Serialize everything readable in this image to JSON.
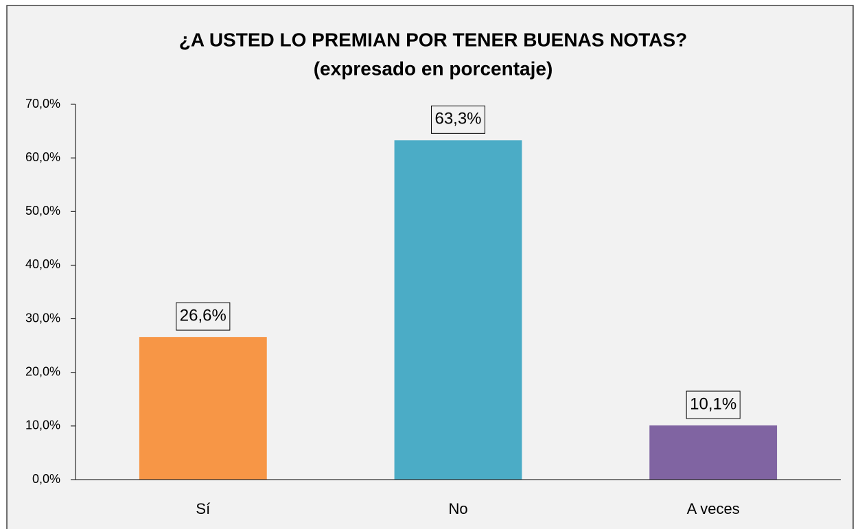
{
  "chart_data": {
    "type": "bar",
    "title": "¿A USTED LO PREMIAN POR TENER BUENAS NOTAS?",
    "subtitle": "(expresado en porcentaje)",
    "categories": [
      "Sí",
      "No",
      "A veces"
    ],
    "values": [
      26.6,
      63.3,
      10.1
    ],
    "value_labels": [
      "26,6%",
      "63,3%",
      "10,1%"
    ],
    "colors": [
      "#f79646",
      "#4bacc6",
      "#8064a2"
    ],
    "ylim": [
      0,
      70
    ],
    "yticks": [
      {
        "value": 0,
        "label": "0,0%"
      },
      {
        "value": 10,
        "label": "10,0%"
      },
      {
        "value": 20,
        "label": "20,0%"
      },
      {
        "value": 30,
        "label": "30,0%"
      },
      {
        "value": 40,
        "label": "40,0%"
      },
      {
        "value": 50,
        "label": "50,0%"
      },
      {
        "value": 60,
        "label": "60,0%"
      },
      {
        "value": 70,
        "label": "70,0%"
      }
    ],
    "grid": false
  }
}
